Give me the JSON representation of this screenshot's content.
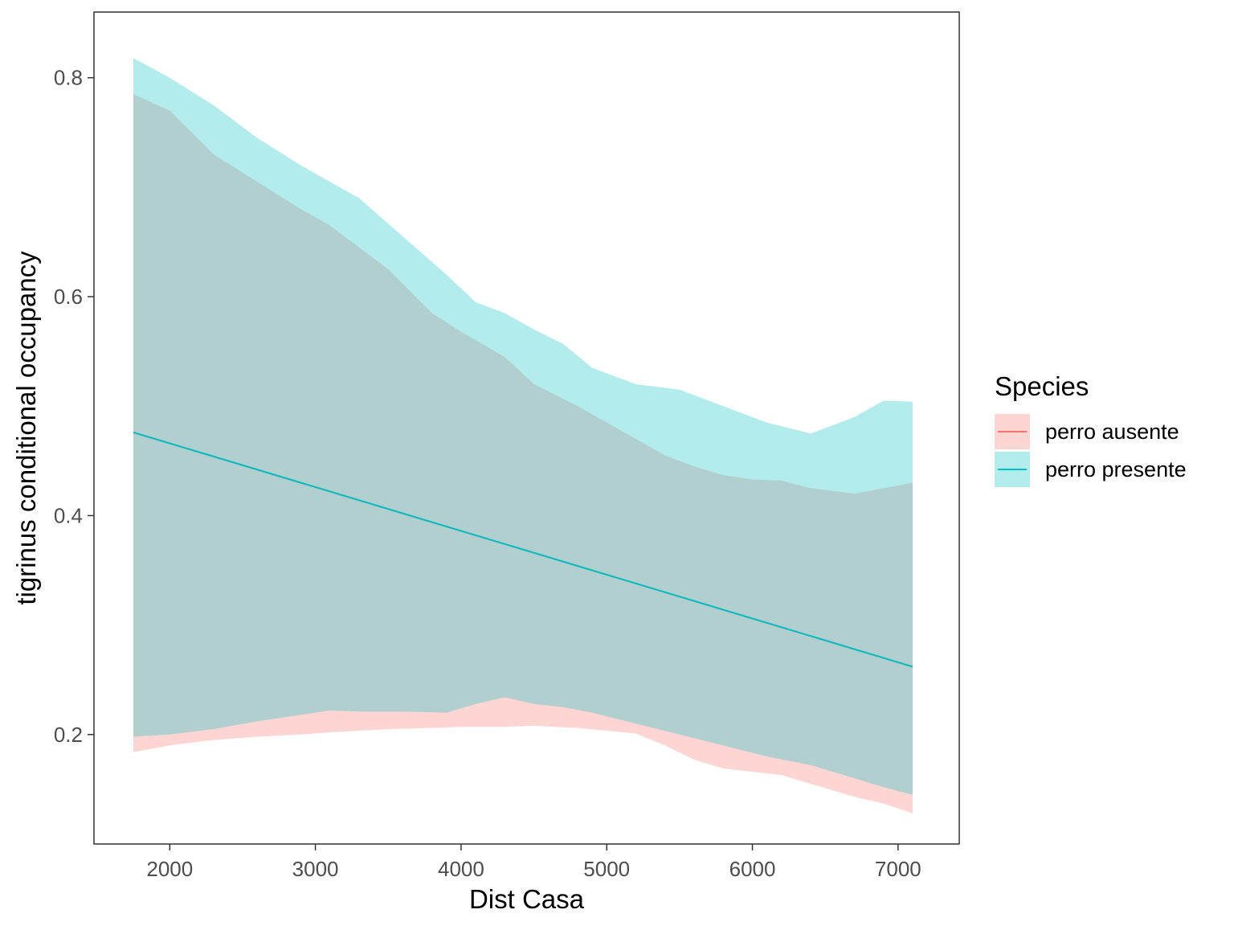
{
  "chart_data": {
    "type": "area",
    "title": "",
    "xlabel": "Dist Casa",
    "ylabel": "tigrinus conditional occupancy",
    "xlim": [
      1480,
      7420
    ],
    "ylim": [
      0.1,
      0.86
    ],
    "x_ticks": [
      2000,
      3000,
      4000,
      5000,
      6000,
      7000
    ],
    "x_tick_labels": [
      "2000",
      "3000",
      "4000",
      "5000",
      "6000",
      "7000"
    ],
    "y_ticks": [
      0.2,
      0.4,
      0.6,
      0.8
    ],
    "y_tick_labels": [
      "0.2",
      "0.4",
      "0.6",
      "0.8"
    ],
    "grid": false,
    "legend": {
      "title": "Species",
      "position": "right"
    },
    "series": [
      {
        "name": "perro ausente",
        "color": "#F8766D",
        "fill_opacity": 0.3,
        "x": [
          1750,
          7100
        ],
        "y": [
          0.476,
          0.262
        ],
        "ribbon": {
          "x": [
            1750,
            2000,
            2300,
            2600,
            2900,
            3100,
            3500,
            3800,
            4000,
            4300,
            4500,
            4800,
            5200,
            5400,
            5600,
            5800,
            6000,
            6200,
            6400,
            6700,
            6900,
            7100
          ],
          "lower": [
            0.184,
            0.19,
            0.195,
            0.198,
            0.2,
            0.202,
            0.205,
            0.206,
            0.207,
            0.207,
            0.208,
            0.206,
            0.201,
            0.19,
            0.177,
            0.169,
            0.166,
            0.163,
            0.155,
            0.143,
            0.137,
            0.128
          ],
          "upper": [
            0.785,
            0.77,
            0.73,
            0.705,
            0.68,
            0.665,
            0.625,
            0.585,
            0.568,
            0.545,
            0.52,
            0.5,
            0.47,
            0.455,
            0.445,
            0.437,
            0.433,
            0.432,
            0.425,
            0.42,
            0.425,
            0.43
          ]
        }
      },
      {
        "name": "perro presente",
        "color": "#00BFC4",
        "fill_opacity": 0.3,
        "x": [
          1750,
          7100
        ],
        "y": [
          0.476,
          0.262
        ],
        "ribbon": {
          "x": [
            1750,
            2000,
            2300,
            2600,
            2900,
            3100,
            3300,
            3600,
            3900,
            4100,
            4300,
            4500,
            4700,
            4900,
            5200,
            5500,
            5800,
            6100,
            6400,
            6700,
            6900,
            7100
          ],
          "lower": [
            0.198,
            0.2,
            0.205,
            0.212,
            0.218,
            0.222,
            0.221,
            0.221,
            0.22,
            0.228,
            0.234,
            0.228,
            0.225,
            0.22,
            0.21,
            0.2,
            0.19,
            0.18,
            0.172,
            0.16,
            0.152,
            0.145
          ],
          "upper": [
            0.818,
            0.8,
            0.775,
            0.745,
            0.72,
            0.705,
            0.69,
            0.655,
            0.62,
            0.595,
            0.585,
            0.57,
            0.557,
            0.535,
            0.52,
            0.515,
            0.5,
            0.485,
            0.475,
            0.49,
            0.505,
            0.504
          ]
        }
      }
    ]
  }
}
